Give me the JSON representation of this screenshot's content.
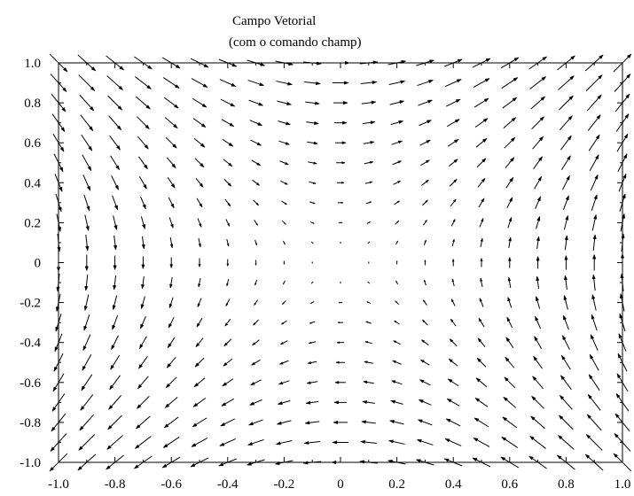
{
  "chart_data": {
    "type": "quiver",
    "title": "Campo Vetorial",
    "subtitle": "(com o comando champ)",
    "xlabel": "",
    "ylabel": "",
    "xlim": [
      -1.0,
      1.0
    ],
    "ylim": [
      -1.0,
      1.0
    ],
    "x_ticks": [
      "-1.0",
      "-0.8",
      "-0.6",
      "-0.4",
      "-0.2",
      "0",
      "0.2",
      "0.4",
      "0.6",
      "0.8",
      "1.0"
    ],
    "y_ticks": [
      "1.0",
      "0.8",
      "0.6",
      "0.4",
      "0.2",
      "0",
      "-0.2",
      "-0.4",
      "-0.6",
      "-0.8",
      "-1.0"
    ],
    "grid": false,
    "field": {
      "u": "y",
      "v": "x",
      "x_range": [
        -1.0,
        1.0
      ],
      "y_range": [
        -1.0,
        1.0
      ],
      "samples_x": 21,
      "samples_y": 21
    },
    "colors": {
      "arrow": "#000000",
      "axes": "#000000",
      "background": "#ffffff"
    }
  }
}
